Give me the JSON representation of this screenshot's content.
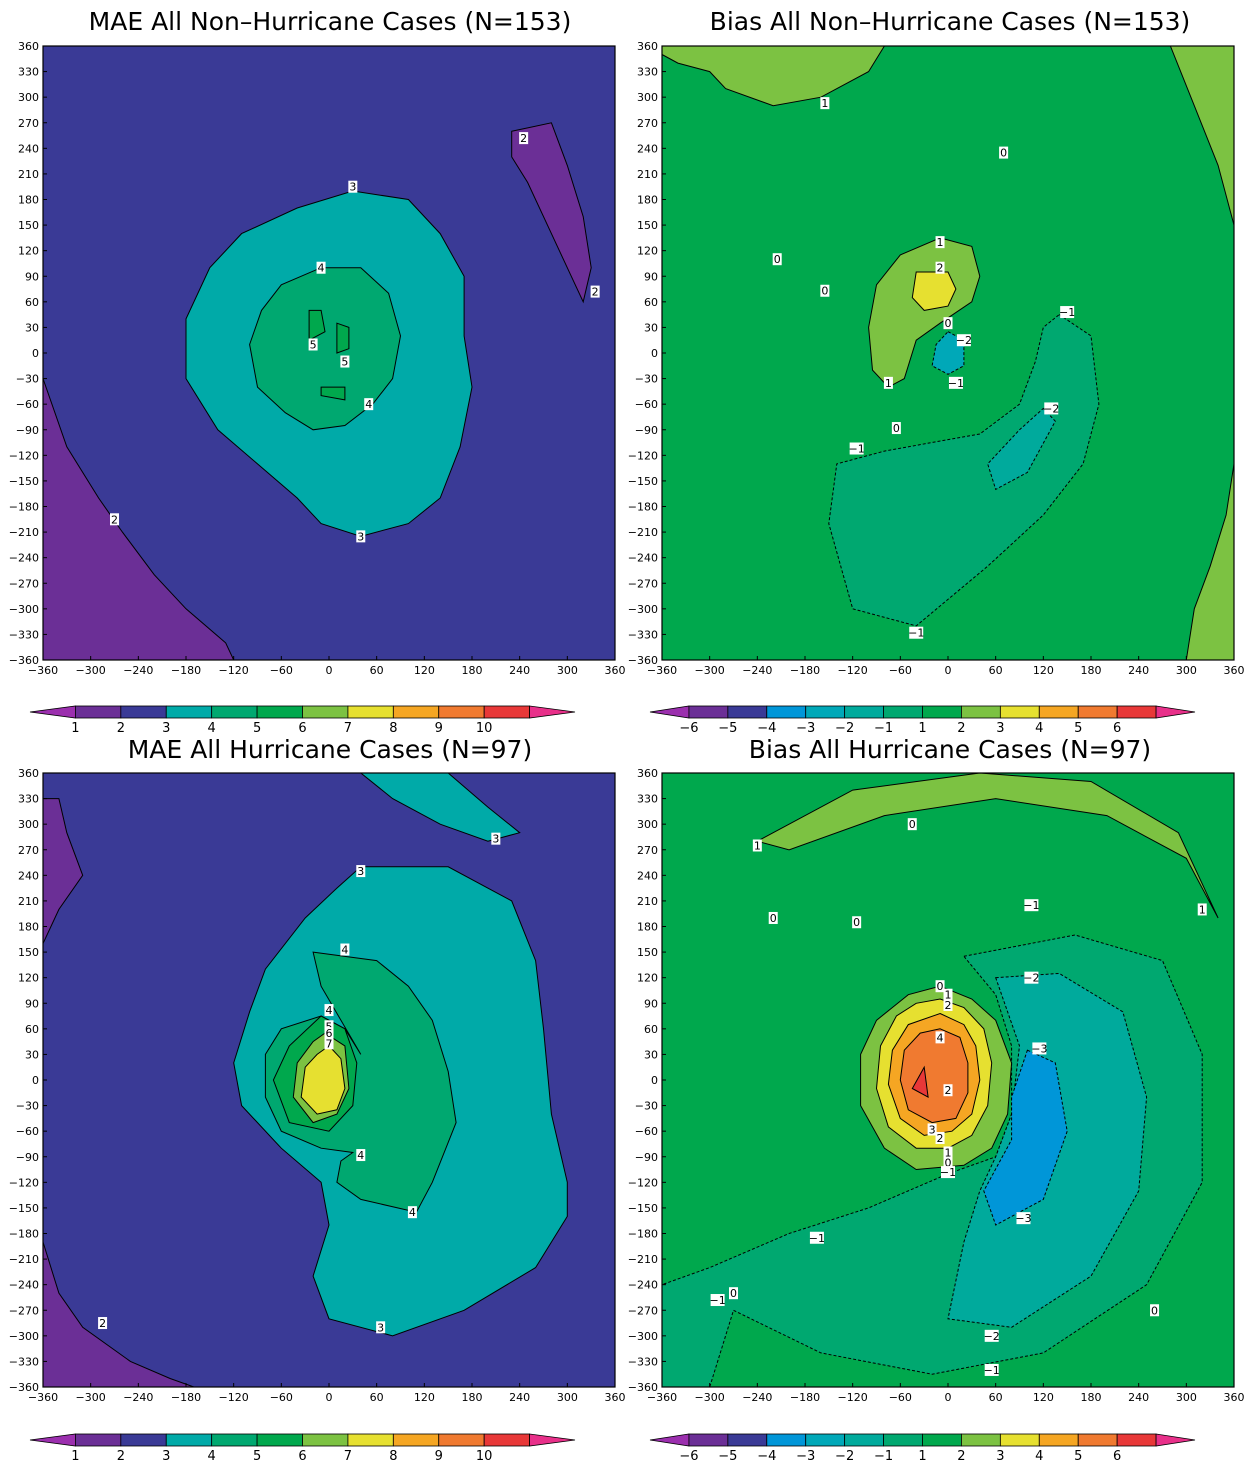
{
  "chart_data": [
    {
      "type": "contour",
      "panel": "mae-non-hurricane",
      "title": "MAE All Non–Hurricane Cases (N=153)",
      "xlim": [
        -360,
        360
      ],
      "ylim": [
        -360,
        360
      ],
      "x_ticks": [
        "−360",
        "−300",
        "−240",
        "−180",
        "−120",
        "−60",
        "0",
        "60",
        "120",
        "180",
        "240",
        "300",
        "360"
      ],
      "y_ticks": [
        "360",
        "330",
        "300",
        "270",
        "240",
        "210",
        "180",
        "150",
        "120",
        "90",
        "60",
        "30",
        "0",
        "−30",
        "−60",
        "−90",
        "−120",
        "−150",
        "−180",
        "−210",
        "−240",
        "−270",
        "−300",
        "−330",
        "−360"
      ],
      "background_level": "2-3",
      "regions": [
        {
          "name": "sw-lowband",
          "level": "1-2",
          "color": "#6b2f96"
        },
        {
          "name": "ne-lowband",
          "level": "1-2",
          "color": "#6b2f96"
        },
        {
          "name": "ring-3",
          "level": "3-4",
          "color": "#00aaa8"
        },
        {
          "name": "ring-4",
          "level": "4-5",
          "color": "#00a870"
        },
        {
          "name": "core-5a",
          "level": "5-6",
          "color": "#00a84d"
        },
        {
          "name": "core-5b",
          "level": "5-6",
          "color": "#00a84d"
        },
        {
          "name": "core-5c",
          "level": "5-6",
          "color": "#00a84d"
        }
      ],
      "contour_labels": [
        {
          "text": "2",
          "x": 245,
          "y": 252
        },
        {
          "text": "2",
          "x": 335,
          "y": 72
        },
        {
          "text": "2",
          "x": -270,
          "y": -195
        },
        {
          "text": "3",
          "x": 30,
          "y": 195
        },
        {
          "text": "3",
          "x": 40,
          "y": -215
        },
        {
          "text": "4",
          "x": -10,
          "y": 100
        },
        {
          "text": "4",
          "x": 50,
          "y": -60
        },
        {
          "text": "5",
          "x": -20,
          "y": 10
        },
        {
          "text": "5",
          "x": 20,
          "y": -10
        }
      ],
      "colorbar": {
        "ticks": [
          "1",
          "2",
          "3",
          "4",
          "5",
          "6",
          "7",
          "8",
          "9",
          "10"
        ]
      }
    },
    {
      "type": "contour",
      "panel": "bias-non-hurricane",
      "title": "Bias All Non–Hurricane Cases (N=153)",
      "xlim": [
        -360,
        360
      ],
      "ylim": [
        -360,
        360
      ],
      "x_ticks": [
        "−360",
        "−300",
        "−240",
        "−180",
        "−120",
        "−60",
        "0",
        "60",
        "120",
        "180",
        "240",
        "300",
        "360"
      ],
      "y_ticks": [
        "360",
        "330",
        "300",
        "270",
        "240",
        "210",
        "180",
        "150",
        "120",
        "90",
        "60",
        "30",
        "0",
        "−30",
        "−60",
        "−90",
        "−120",
        "−150",
        "−180",
        "−210",
        "−240",
        "−270",
        "−300",
        "−330",
        "−360"
      ],
      "background_level": "0-1",
      "regions": [
        {
          "name": "nw-plus1",
          "level": "1-2",
          "color": "#7cc242"
        },
        {
          "name": "ne-plus1",
          "level": "1-2",
          "color": "#7cc242"
        },
        {
          "name": "se-plus1",
          "level": "1-2",
          "color": "#7cc242"
        },
        {
          "name": "plus1-arc",
          "level": "1-2",
          "color": "#7cc242"
        },
        {
          "name": "plus2-core",
          "level": "2-3",
          "color": "#e6e030"
        },
        {
          "name": "minus1-arc",
          "level": "-1-0",
          "color": "#00a870"
        },
        {
          "name": "minus2-patch",
          "level": "-2--1",
          "color": "#00aa9c"
        },
        {
          "name": "center-minus",
          "level": "-3--2",
          "color": "#00a8b8"
        }
      ],
      "contour_labels": [
        {
          "text": "1",
          "x": -155,
          "y": 293
        },
        {
          "text": "0",
          "x": 70,
          "y": 235
        },
        {
          "text": "0",
          "x": -215,
          "y": 110
        },
        {
          "text": "0",
          "x": -155,
          "y": 73
        },
        {
          "text": "1",
          "x": -10,
          "y": 130
        },
        {
          "text": "2",
          "x": -10,
          "y": 100
        },
        {
          "text": "0",
          "x": 0,
          "y": 35
        },
        {
          "text": "−2",
          "x": 20,
          "y": 15
        },
        {
          "text": "−1",
          "x": 10,
          "y": -35
        },
        {
          "text": "1",
          "x": -75,
          "y": -35
        },
        {
          "text": "0",
          "x": -65,
          "y": -88
        },
        {
          "text": "−1",
          "x": -115,
          "y": -112
        },
        {
          "text": "−1",
          "x": 150,
          "y": 48
        },
        {
          "text": "−2",
          "x": 130,
          "y": -65
        },
        {
          "text": "−1",
          "x": -40,
          "y": -328
        }
      ],
      "colorbar": {
        "ticks": [
          "−6",
          "−5",
          "−4",
          "−3",
          "−2",
          "−1",
          "1",
          "2",
          "3",
          "4",
          "5",
          "6"
        ]
      }
    },
    {
      "type": "contour",
      "panel": "mae-hurricane",
      "title": "MAE All Hurricane Cases (N=97)",
      "xlim": [
        -360,
        360
      ],
      "ylim": [
        -360,
        360
      ],
      "x_ticks": [
        "−360",
        "−300",
        "−240",
        "−180",
        "−120",
        "−60",
        "0",
        "60",
        "120",
        "180",
        "240",
        "300",
        "360"
      ],
      "y_ticks": [
        "360",
        "330",
        "300",
        "270",
        "240",
        "210",
        "180",
        "150",
        "120",
        "90",
        "60",
        "30",
        "0",
        "−30",
        "−60",
        "−90",
        "−120",
        "−150",
        "−180",
        "−210",
        "−240",
        "−270",
        "−300",
        "−330",
        "−360"
      ],
      "background_level": "2-3",
      "regions": [
        {
          "name": "nw-lowband",
          "level": "1-2",
          "color": "#6b2f96"
        },
        {
          "name": "sw-lowband",
          "level": "1-2",
          "color": "#6b2f96"
        },
        {
          "name": "ne-3-patch",
          "level": "3-4",
          "color": "#00aaa8"
        },
        {
          "name": "ring-3",
          "level": "3-4",
          "color": "#00aaa8"
        },
        {
          "name": "ring-4",
          "level": "4-5",
          "color": "#00a870"
        },
        {
          "name": "ring-5",
          "level": "5-6",
          "color": "#00a84d"
        },
        {
          "name": "ring-6",
          "level": "6-7",
          "color": "#7cc242"
        },
        {
          "name": "core-7",
          "level": "7-8",
          "color": "#e6e030"
        }
      ],
      "contour_labels": [
        {
          "text": "3",
          "x": 210,
          "y": 283
        },
        {
          "text": "3",
          "x": 40,
          "y": 245
        },
        {
          "text": "4",
          "x": 20,
          "y": 153
        },
        {
          "text": "4",
          "x": 0,
          "y": 82
        },
        {
          "text": "5",
          "x": 0,
          "y": 63
        },
        {
          "text": "6",
          "x": 0,
          "y": 55
        },
        {
          "text": "7",
          "x": 0,
          "y": 43
        },
        {
          "text": "4",
          "x": 40,
          "y": -88
        },
        {
          "text": "4",
          "x": 105,
          "y": -155
        },
        {
          "text": "3",
          "x": 65,
          "y": -290
        },
        {
          "text": "2",
          "x": -285,
          "y": -285
        }
      ],
      "colorbar": {
        "ticks": [
          "1",
          "2",
          "3",
          "4",
          "5",
          "6",
          "7",
          "8",
          "9",
          "10"
        ]
      }
    },
    {
      "type": "contour",
      "panel": "bias-hurricane",
      "title": "Bias All Hurricane Cases (N=97)",
      "xlim": [
        -360,
        360
      ],
      "ylim": [
        -360,
        360
      ],
      "x_ticks": [
        "−360",
        "−300",
        "−240",
        "−180",
        "−120",
        "−60",
        "0",
        "60",
        "120",
        "180",
        "240",
        "300",
        "360"
      ],
      "y_ticks": [
        "360",
        "330",
        "300",
        "270",
        "240",
        "210",
        "180",
        "150",
        "120",
        "90",
        "60",
        "30",
        "0",
        "−30",
        "−60",
        "−90",
        "−120",
        "−150",
        "−180",
        "−210",
        "−240",
        "−270",
        "−300",
        "−330",
        "−360"
      ],
      "background_level": "0-1",
      "regions": [
        {
          "name": "ne-plus1-arc",
          "level": "1-2",
          "color": "#7cc242"
        },
        {
          "name": "minus1-arc",
          "level": "-1-0",
          "color": "#00a870"
        },
        {
          "name": "minus2-arc",
          "level": "-2--1",
          "color": "#00aa9c"
        },
        {
          "name": "minus3-patch",
          "level": "-3--2",
          "color": "#0096d8"
        },
        {
          "name": "plus1-ring",
          "level": "1-2",
          "color": "#7cc242"
        },
        {
          "name": "plus2-ring",
          "level": "2-3",
          "color": "#e6e030"
        },
        {
          "name": "plus3-ring",
          "level": "3-4",
          "color": "#f5a623"
        },
        {
          "name": "plus4-core",
          "level": "4-5",
          "color": "#f07a30"
        },
        {
          "name": "plus5-spot",
          "level": "5-6",
          "color": "#e83838"
        }
      ],
      "contour_labels": [
        {
          "text": "1",
          "x": -240,
          "y": 275
        },
        {
          "text": "0",
          "x": -45,
          "y": 300
        },
        {
          "text": "0",
          "x": -220,
          "y": 190
        },
        {
          "text": "0",
          "x": -115,
          "y": 185
        },
        {
          "text": "1",
          "x": 320,
          "y": 200
        },
        {
          "text": "−1",
          "x": 105,
          "y": 205
        },
        {
          "text": "−2",
          "x": 105,
          "y": 120
        },
        {
          "text": "0",
          "x": -10,
          "y": 110
        },
        {
          "text": "1",
          "x": 0,
          "y": 100
        },
        {
          "text": "2",
          "x": 0,
          "y": 88
        },
        {
          "text": "4",
          "x": -10,
          "y": 50
        },
        {
          "text": "−3",
          "x": 115,
          "y": 37
        },
        {
          "text": "2",
          "x": 0,
          "y": -12
        },
        {
          "text": "3",
          "x": -20,
          "y": -58
        },
        {
          "text": "2",
          "x": -10,
          "y": -68
        },
        {
          "text": "1",
          "x": 0,
          "y": -85
        },
        {
          "text": "0",
          "x": 0,
          "y": -97
        },
        {
          "text": "−1",
          "x": 0,
          "y": -108
        },
        {
          "text": "−3",
          "x": 95,
          "y": -162
        },
        {
          "text": "−1",
          "x": -165,
          "y": -185
        },
        {
          "text": "0",
          "x": -270,
          "y": -250
        },
        {
          "text": "−1",
          "x": -290,
          "y": -258
        },
        {
          "text": "0",
          "x": 260,
          "y": -270
        },
        {
          "text": "−2",
          "x": 55,
          "y": -300
        },
        {
          "text": "−1",
          "x": 55,
          "y": -340
        }
      ],
      "colorbar": {
        "ticks": [
          "−6",
          "−5",
          "−4",
          "−3",
          "−2",
          "−1",
          "1",
          "2",
          "3",
          "4",
          "5",
          "6"
        ]
      }
    }
  ],
  "colors": {
    "mae_scale": [
      "#9b2fae",
      "#6b2f96",
      "#3a3a96",
      "#00aaa8",
      "#00a870",
      "#00a84d",
      "#7cc242",
      "#e6e030",
      "#f5a623",
      "#f07a30",
      "#e83838",
      "#e8308a"
    ],
    "bias_scale": [
      "#9b2fae",
      "#6b2f96",
      "#3a3a96",
      "#0096d8",
      "#00a8b8",
      "#00aa9c",
      "#00a870",
      "#00a84d",
      "#7cc242",
      "#e6e030",
      "#f5a623",
      "#f07a30",
      "#e83838",
      "#e8308a"
    ]
  }
}
